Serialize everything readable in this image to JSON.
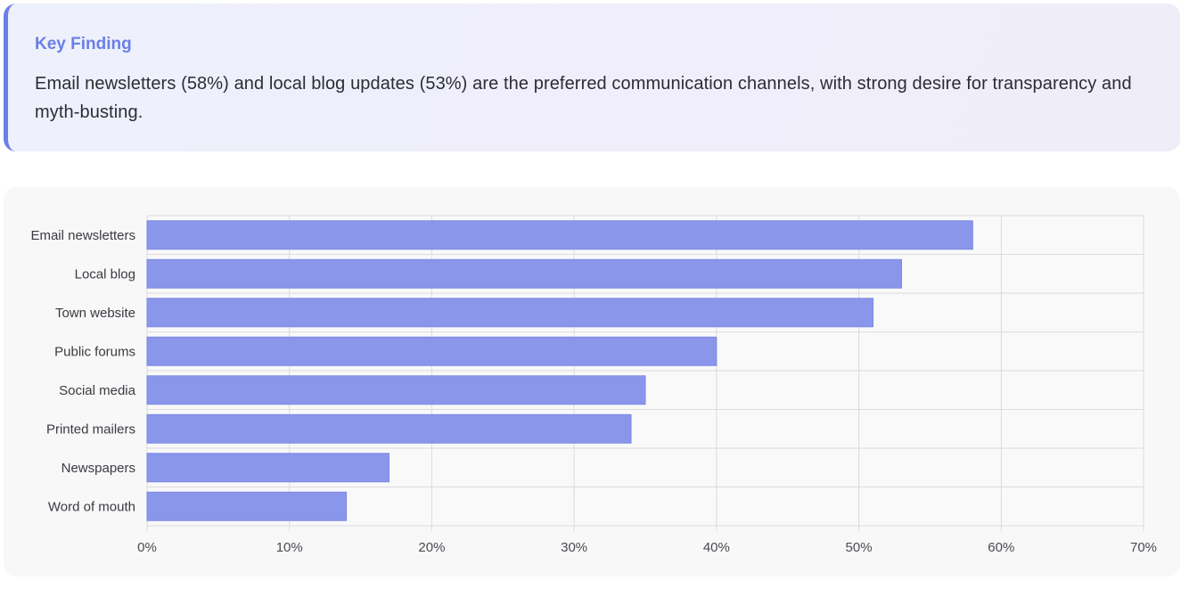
{
  "finding": {
    "title": "Key Finding",
    "text": "Email newsletters (58%) and local blog updates (53%) are the preferred communication channels, with strong desire for transparency and myth-busting."
  },
  "colors": {
    "accent": "#6b7fe6",
    "bar": "#8a96ea"
  },
  "chart_data": {
    "type": "bar",
    "orientation": "horizontal",
    "categories": [
      "Email newsletters",
      "Local blog",
      "Town website",
      "Public forums",
      "Social media",
      "Printed mailers",
      "Newspapers",
      "Word of mouth"
    ],
    "values": [
      58,
      53,
      51,
      40,
      35,
      34,
      17,
      14
    ],
    "xlim": [
      0,
      70
    ],
    "x_ticks": [
      0,
      10,
      20,
      30,
      40,
      50,
      60,
      70
    ],
    "x_tick_labels": [
      "0%",
      "10%",
      "20%",
      "30%",
      "40%",
      "50%",
      "60%",
      "70%"
    ],
    "grid": true,
    "legend": "none",
    "title": "",
    "xlabel": "",
    "ylabel": ""
  }
}
